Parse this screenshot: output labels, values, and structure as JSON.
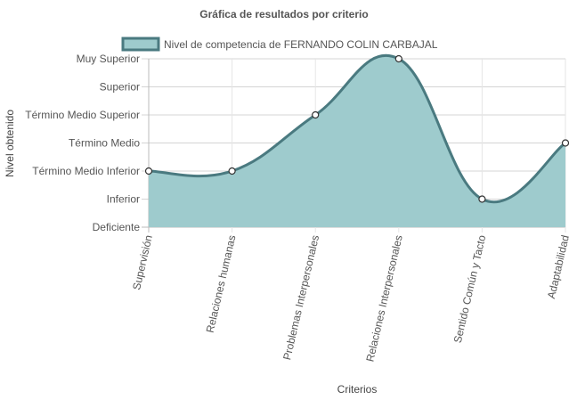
{
  "chart_data": {
    "type": "area",
    "title": "Gráfica de resultados por criterio",
    "xlabel": "Criterios",
    "ylabel": "Nivel obtenido",
    "categories": [
      "Supervisión",
      "Relaciones humanas",
      "Problemas Interpersonales",
      "Relaciones Interpersonales",
      "Sentido Común y Tacto",
      "Adaptabilidad"
    ],
    "y_levels": [
      "Deficiente",
      "Inferior",
      "Término Medio Inferior",
      "Término Medio",
      "Término Medio Superior",
      "Superior",
      "Muy Superior"
    ],
    "ylim": [
      0,
      6
    ],
    "grid": true,
    "legend_position": "top",
    "series": [
      {
        "name": "Nivel de competencia de FERNANDO COLIN CARBAJAL",
        "values": [
          2,
          2,
          4,
          6,
          1,
          3
        ],
        "fill_color": "#9ecbcd",
        "line_color": "#4a7a80"
      }
    ]
  }
}
